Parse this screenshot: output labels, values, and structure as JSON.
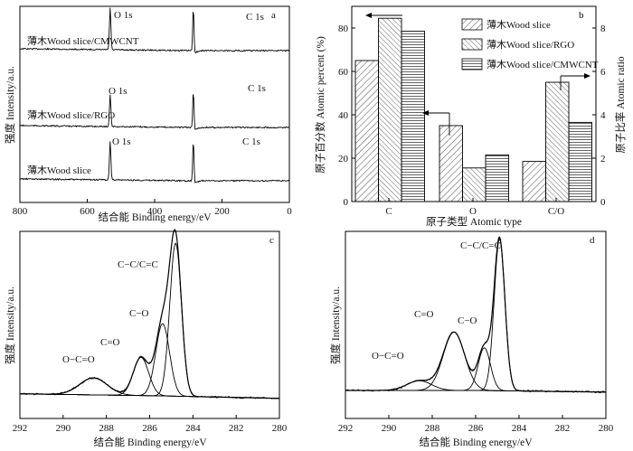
{
  "chart_data": [
    {
      "id": "a",
      "type": "line",
      "panel_label": "a",
      "title": "",
      "xlabel": "结合能 Binding energy/eV",
      "ylabel": "强度 Intensity/a.u.",
      "xlim": [
        800,
        0
      ],
      "xticks": [
        "800",
        "600",
        "400",
        "200",
        "0"
      ],
      "series": [
        {
          "name": "薄木Wood slice/CMWCNT",
          "peaks": [
            "O 1s",
            "C 1s"
          ]
        },
        {
          "name": "薄木Wood slice/RGO",
          "peaks": [
            "O 1s",
            "C 1s"
          ]
        },
        {
          "name": "薄木Wood slice",
          "peaks": [
            "O 1s",
            "C 1s"
          ]
        }
      ]
    },
    {
      "id": "b",
      "type": "bar",
      "panel_label": "b",
      "xlabel": "原子类型 Atomic type",
      "ylabel": "原子百分数 Atomic percent (%)",
      "ylabel_right": "原子比率 Atomic ratio",
      "ylim": [
        0,
        90
      ],
      "yticks": [
        "0",
        "20",
        "40",
        "60",
        "80"
      ],
      "ylim_right": [
        0,
        9
      ],
      "yticks_right": [
        "0",
        "2",
        "4",
        "6",
        "8"
      ],
      "categories": [
        "C",
        "O",
        "C/O"
      ],
      "series": [
        {
          "name": "薄木Wood slice",
          "values": [
            65,
            35,
            1.85
          ]
        },
        {
          "name": "薄木Wood slice/RGO",
          "values": [
            84.5,
            15.5,
            5.5
          ]
        },
        {
          "name": "薄木Wood slice/CMWCNT",
          "values": [
            78.5,
            21.5,
            3.65
          ]
        }
      ],
      "legend": [
        "薄木Wood slice",
        "薄木Wood slice/RGO",
        "薄木Wood slice/CMWCNT"
      ],
      "legend_position": "top-right"
    },
    {
      "id": "c",
      "type": "line",
      "panel_label": "c",
      "xlabel": "结合能 Binding energy/eV",
      "ylabel": "强度 Intensity/a.u.",
      "xlim": [
        292,
        280
      ],
      "xticks": [
        "292",
        "290",
        "288",
        "286",
        "284",
        "282",
        "280"
      ],
      "peak_labels": [
        "O−C=O",
        "C=O",
        "C−O",
        "C−C/C=C"
      ],
      "components": [
        {
          "name": "O−C=O",
          "center": 288.6,
          "amplitude": 0.08,
          "width": 0.9
        },
        {
          "name": "C=O",
          "center": 286.4,
          "amplitude": 0.18,
          "width": 0.5
        },
        {
          "name": "C−O",
          "center": 285.4,
          "amplitude": 0.34,
          "width": 0.45
        },
        {
          "name": "C−C/C=C",
          "center": 284.8,
          "amplitude": 0.72,
          "width": 0.38
        }
      ]
    },
    {
      "id": "d",
      "type": "line",
      "panel_label": "d",
      "xlabel": "结合能 Binding energy/eV",
      "ylabel": "强度 Intensity/a.u.",
      "xlim": [
        292,
        280
      ],
      "xticks": [
        "292",
        "290",
        "288",
        "286",
        "284",
        "282",
        "280"
      ],
      "peak_labels": [
        "O−C=O",
        "C=O",
        "C−O",
        "C−C/C=C"
      ],
      "components": [
        {
          "name": "O−C=O",
          "center": 288.6,
          "amplitude": 0.05,
          "width": 0.8
        },
        {
          "name": "C=O",
          "center": 287.0,
          "amplitude": 0.3,
          "width": 0.7
        },
        {
          "name": "C−O",
          "center": 285.6,
          "amplitude": 0.22,
          "width": 0.4
        },
        {
          "name": "C−C/C=C",
          "center": 284.9,
          "amplitude": 0.78,
          "width": 0.35
        }
      ]
    }
  ]
}
